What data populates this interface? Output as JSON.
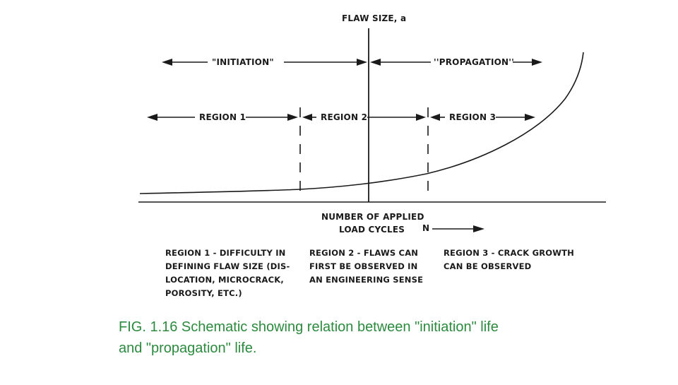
{
  "diagram": {
    "y_axis_label": "FLAW SIZE, a",
    "x_axis_label": [
      "NUMBER OF APPLIED",
      "LOAD CYCLES"
    ],
    "x_axis_symbol": "N",
    "phases": {
      "initiation": "\"INITIATION\"",
      "propagation": "''PROPAGATION''"
    },
    "regions": [
      "REGION 1",
      "REGION 2",
      "REGION 3"
    ],
    "descriptions": {
      "region1": [
        "REGION 1 - DIFFICULTY IN",
        "DEFINING FLAW SIZE (DIS-",
        "LOCATION, MICROCRACK,",
        "POROSITY, ETC.)"
      ],
      "region2": [
        "REGION 2 - FLAWS  CAN",
        "FIRST BE OBSERVED IN",
        "AN ENGINEERING SENSE"
      ],
      "region3": [
        "REGION 3 - CRACK GROWTH",
        "CAN BE OBSERVED"
      ]
    }
  },
  "caption": {
    "line1": "FIG. 1.16 Schematic showing relation between \"initiation\" life",
    "line2": "and \"propagation\" life."
  },
  "colors": {
    "ink": "#1a1a1a",
    "caption": "#2c8a3e"
  }
}
